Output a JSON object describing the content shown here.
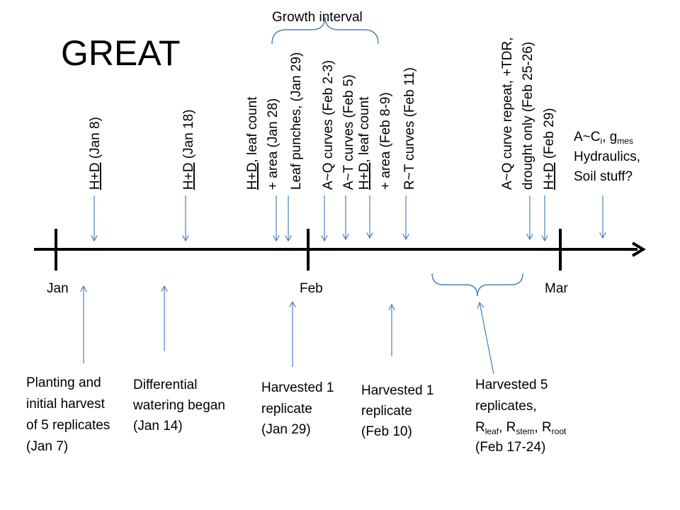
{
  "title": "GREAT",
  "months": [
    "Jan",
    "Feb",
    "Mar"
  ],
  "growth_interval": "Growth interval",
  "top_events": [
    {
      "lines": [
        {
          "u": "H+D",
          "t": " (Jan 8)"
        }
      ]
    },
    {
      "lines": [
        {
          "u": "H+D",
          "t": " (Jan 18)"
        }
      ]
    },
    {
      "lines": [
        {
          "u": "H+D",
          "t": ",  leaf count"
        },
        {
          "u": "",
          "t": "+ area (Jan 28)"
        }
      ]
    },
    {
      "lines": [
        {
          "u": "",
          "t": "Leaf punches, (Jan 29)"
        }
      ]
    },
    {
      "lines": [
        {
          "u": "",
          "t": "A~Q curves (Feb 2-3)"
        }
      ]
    },
    {
      "lines": [
        {
          "u": "",
          "t": "A~T curves (Feb 5)"
        }
      ]
    },
    {
      "lines": [
        {
          "u": "H+D",
          "t": ",  leaf count"
        },
        {
          "u": "",
          "t": "+ area (Feb 8-9)"
        }
      ]
    },
    {
      "lines": [
        {
          "u": "",
          "t": "R~T curves (Feb 11)"
        }
      ]
    },
    {
      "lines": [
        {
          "u": "",
          "t": "A~Q curve repeat, +TDR,"
        },
        {
          "u": "",
          "t": "drought only  (Feb 25-26)"
        }
      ]
    },
    {
      "lines": [
        {
          "u": "H+D",
          "t": " (Feb 29)"
        }
      ]
    }
  ],
  "right_note": {
    "line1": {
      "a": "A~C",
      "a_sub": "i",
      "b": ", g",
      "b_sub": "mes"
    },
    "line2": "Hydraulics,",
    "line3": "Soil stuff?"
  },
  "bottom_events": [
    {
      "lines": [
        "Planting and",
        "initial harvest",
        "of 5 replicates",
        "(Jan 7)"
      ]
    },
    {
      "lines": [
        "Differential",
        "watering began",
        "(Jan 14)"
      ]
    },
    {
      "lines": [
        "Harvested 1",
        "replicate",
        "(Jan 29)"
      ]
    },
    {
      "lines": [
        "Harvested 1",
        "replicate",
        "(Feb 10)"
      ]
    },
    {
      "line1": "Harvested 5",
      "line2": "replicates,",
      "line3": [
        {
          "t": "R",
          "s": "leaf"
        },
        {
          "t": ", R",
          "s": "stem"
        },
        {
          "t": ", R",
          "s": "root"
        }
      ],
      "line4": "(Feb 17-24)"
    }
  ],
  "colors": {
    "axis": "#000000",
    "arrow": "#4a7ebb",
    "text": "#000000"
  }
}
